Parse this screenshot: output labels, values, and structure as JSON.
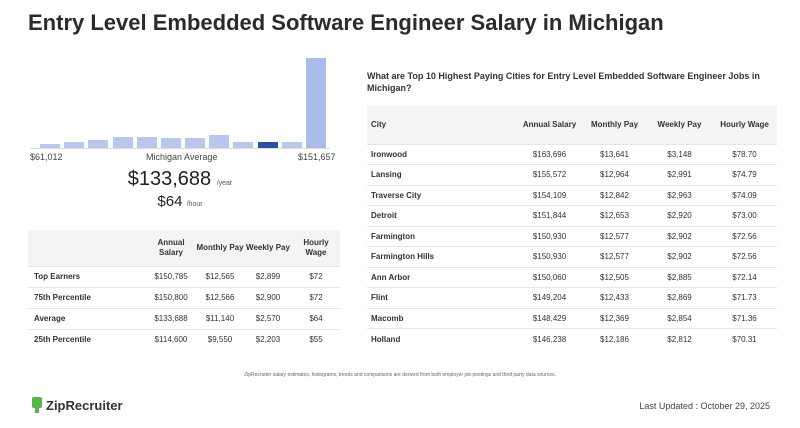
{
  "title": "Entry Level Embedded Software Engineer Salary in Michigan",
  "histogram": {
    "min_label": "$61,012",
    "mid_label": "Michigan Average",
    "max_label": "$151,657",
    "highlight_index": 9,
    "colors": {
      "bar": "#b9c7ec",
      "highlight": "#2a4ea0",
      "top": "#aabbea"
    },
    "bins": [
      {
        "level": 0.04
      },
      {
        "level": 0.07
      },
      {
        "level": 0.09
      },
      {
        "level": 0.12
      },
      {
        "level": 0.12
      },
      {
        "level": 0.11
      },
      {
        "level": 0.11
      },
      {
        "level": 0.15
      },
      {
        "level": 0.07
      },
      {
        "level": 0.07
      },
      {
        "level": 0.07
      },
      {
        "level": 1.0
      }
    ]
  },
  "average": {
    "annual": "$133,688",
    "annual_unit": "/year",
    "hourly": "$64",
    "hourly_unit": "/hour"
  },
  "percentiles": {
    "headers": [
      "",
      "Annual Salary",
      "Monthly Pay",
      "Weekly Pay",
      "Hourly Wage"
    ],
    "rows": [
      [
        "Top Earners",
        "$150,785",
        "$12,565",
        "$2,899",
        "$72"
      ],
      [
        "75th Percentile",
        "$150,800",
        "$12,566",
        "$2,900",
        "$72"
      ],
      [
        "Average",
        "$133,688",
        "$11,140",
        "$2,570",
        "$64"
      ],
      [
        "25th Percentile",
        "$114,600",
        "$9,550",
        "$2,203",
        "$55"
      ]
    ]
  },
  "cities": {
    "heading": "What are Top 10 Highest Paying Cities for Entry Level Embedded Software Engineer Jobs in Michigan?",
    "headers": [
      "City",
      "Annual Salary",
      "Monthly Pay",
      "Weekly Pay",
      "Hourly Wage"
    ],
    "rows": [
      [
        "Ironwood",
        "$163,696",
        "$13,641",
        "$3,148",
        "$78.70"
      ],
      [
        "Lansing",
        "$155,572",
        "$12,964",
        "$2,991",
        "$74.79"
      ],
      [
        "Traverse City",
        "$154,109",
        "$12,842",
        "$2,963",
        "$74.09"
      ],
      [
        "Detroit",
        "$151,844",
        "$12,653",
        "$2,920",
        "$73.00"
      ],
      [
        "Farmington",
        "$150,930",
        "$12,577",
        "$2,902",
        "$72.56"
      ],
      [
        "Farmington Hills",
        "$150,930",
        "$12,577",
        "$2,902",
        "$72.56"
      ],
      [
        "Ann Arbor",
        "$150,060",
        "$12,505",
        "$2,885",
        "$72.14"
      ],
      [
        "Flint",
        "$149,204",
        "$12,433",
        "$2,869",
        "$71.73"
      ],
      [
        "Macomb",
        "$148,429",
        "$12,369",
        "$2,854",
        "$71.36"
      ],
      [
        "Holland",
        "$146,238",
        "$12,186",
        "$2,812",
        "$70.31"
      ]
    ]
  },
  "footnote": "ZipRecruiter salary estimates, histograms, trends and comparisons are derived from both employer job postings and third party data sources.",
  "logo_text": "ZipRecruiter",
  "last_updated": "Last Updated : October 29, 2025"
}
